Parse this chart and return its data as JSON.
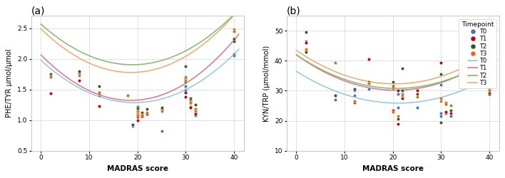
{
  "panel_a": {
    "title": "(a)",
    "ylabel": "PHE/TYR μmol/μmol",
    "xlabel": "MADRAS score",
    "xlim": [
      -2,
      42
    ],
    "ylim": [
      0.5,
      2.7
    ],
    "yticks": [
      0.5,
      1.0,
      1.5,
      2.0,
      2.5
    ],
    "xticks": [
      0,
      10,
      20,
      30,
      40
    ],
    "scatter": {
      "T0": {
        "color": "#4472C4",
        "points": [
          [
            2,
            1.7
          ],
          [
            2,
            1.73
          ],
          [
            8,
            1.79
          ],
          [
            8,
            1.76
          ],
          [
            12,
            1.44
          ],
          [
            12,
            1.42
          ],
          [
            12,
            1.4
          ],
          [
            19,
            0.9
          ],
          [
            19,
            0.92
          ],
          [
            20,
            1.22
          ],
          [
            20,
            1.21
          ],
          [
            20,
            1.14
          ],
          [
            20,
            1.12
          ],
          [
            20,
            1.1
          ],
          [
            21,
            1.11
          ],
          [
            21,
            1.1
          ],
          [
            22,
            1.1
          ],
          [
            25,
            0.82
          ],
          [
            30,
            1.55
          ],
          [
            30,
            1.5
          ],
          [
            30,
            1.48
          ],
          [
            31,
            1.3
          ],
          [
            31,
            1.27
          ],
          [
            32,
            1.1
          ],
          [
            32,
            1.08
          ],
          [
            40,
            2.08
          ],
          [
            40,
            2.05
          ]
        ]
      },
      "T1": {
        "color": "#C00000",
        "points": [
          [
            2,
            1.44
          ],
          [
            8,
            1.65
          ],
          [
            12,
            1.23
          ],
          [
            18,
            1.4
          ],
          [
            20,
            1.09
          ],
          [
            20,
            1.08
          ],
          [
            20,
            1.05
          ],
          [
            20,
            1.0
          ],
          [
            21,
            1.07
          ],
          [
            22,
            1.1
          ],
          [
            25,
            1.18
          ],
          [
            30,
            1.45
          ],
          [
            30,
            1.38
          ],
          [
            31,
            1.22
          ],
          [
            31,
            1.2
          ],
          [
            32,
            1.12
          ],
          [
            32,
            1.1
          ],
          [
            40,
            2.33
          ],
          [
            40,
            2.3
          ]
        ]
      },
      "T2": {
        "color": "#375623",
        "points": [
          [
            2,
            1.75
          ],
          [
            2,
            1.72
          ],
          [
            8,
            1.8
          ],
          [
            12,
            1.55
          ],
          [
            12,
            1.45
          ],
          [
            19,
            0.93
          ],
          [
            20,
            1.22
          ],
          [
            20,
            1.2
          ],
          [
            20,
            1.18
          ],
          [
            20,
            1.15
          ],
          [
            21,
            1.12
          ],
          [
            22,
            1.18
          ],
          [
            25,
            1.2
          ],
          [
            30,
            1.88
          ],
          [
            30,
            1.68
          ],
          [
            30,
            1.62
          ],
          [
            31,
            1.35
          ],
          [
            31,
            1.32
          ],
          [
            32,
            1.25
          ],
          [
            32,
            1.18
          ],
          [
            40,
            2.32
          ],
          [
            40,
            2.28
          ]
        ]
      },
      "T3": {
        "color": "#E36C09",
        "points": [
          [
            2,
            1.7
          ],
          [
            8,
            1.73
          ],
          [
            12,
            1.43
          ],
          [
            18,
            1.4
          ],
          [
            20,
            1.13
          ],
          [
            20,
            1.1
          ],
          [
            20,
            1.08
          ],
          [
            21,
            1.09
          ],
          [
            22,
            1.12
          ],
          [
            25,
            1.15
          ],
          [
            30,
            1.7
          ],
          [
            30,
            1.65
          ],
          [
            31,
            1.3
          ],
          [
            31,
            1.28
          ],
          [
            32,
            1.18
          ],
          [
            32,
            1.15
          ],
          [
            40,
            2.48
          ],
          [
            40,
            2.45
          ]
        ]
      }
    },
    "curves": {
      "T0": {
        "color": "#93c6e0",
        "a": 0.00185,
        "b": -0.0715,
        "c": 1.975
      },
      "T1": {
        "color": "#e07090",
        "a": 0.00215,
        "b": -0.08,
        "c": 2.065
      },
      "T2": {
        "color": "#80b870",
        "a": 0.00185,
        "b": -0.07,
        "c": 2.565
      },
      "T3": {
        "color": "#f0a868",
        "a": 0.00205,
        "b": -0.0765,
        "c": 2.49
      }
    }
  },
  "panel_b": {
    "title": "(b)",
    "ylabel": "KYN/TRP (μmol/mmol)",
    "xlabel": "MADRAS score",
    "xlim": [
      -2,
      42
    ],
    "ylim": [
      10,
      55
    ],
    "yticks": [
      10,
      20,
      30,
      40,
      50
    ],
    "xticks": [
      0,
      10,
      20,
      30,
      40
    ],
    "scatter": {
      "T0": {
        "color": "#4472C4",
        "points": [
          [
            2,
            46.5
          ],
          [
            2,
            43.5
          ],
          [
            8,
            27.0
          ],
          [
            12,
            30.0
          ],
          [
            12,
            28.5
          ],
          [
            15,
            30.5
          ],
          [
            20,
            31.0
          ],
          [
            20,
            30.5
          ],
          [
            21,
            29.0
          ],
          [
            21,
            24.5
          ],
          [
            22,
            29.0
          ],
          [
            25,
            24.5
          ],
          [
            30,
            32.0
          ],
          [
            30,
            22.5
          ],
          [
            30,
            21.5
          ],
          [
            31,
            22.5
          ],
          [
            32,
            21.5
          ],
          [
            40,
            29.0
          ]
        ]
      },
      "T1": {
        "color": "#C00000",
        "points": [
          [
            2,
            46.0
          ],
          [
            8,
            28.5
          ],
          [
            12,
            30.5
          ],
          [
            15,
            40.5
          ],
          [
            20,
            31.5
          ],
          [
            20,
            23.5
          ],
          [
            21,
            30.0
          ],
          [
            21,
            19.0
          ],
          [
            22,
            27.5
          ],
          [
            25,
            30.0
          ],
          [
            30,
            39.5
          ],
          [
            30,
            27.5
          ],
          [
            31,
            23.0
          ],
          [
            32,
            22.5
          ],
          [
            40,
            29.0
          ]
        ]
      },
      "T2": {
        "color": "#375623",
        "points": [
          [
            2,
            49.5
          ],
          [
            2,
            43.0
          ],
          [
            8,
            28.5
          ],
          [
            12,
            30.5
          ],
          [
            12,
            26.0
          ],
          [
            15,
            33.0
          ],
          [
            15,
            32.5
          ],
          [
            20,
            31.5
          ],
          [
            20,
            33.0
          ],
          [
            21,
            20.5
          ],
          [
            22,
            30.0
          ],
          [
            22,
            37.5
          ],
          [
            25,
            29.0
          ],
          [
            30,
            35.5
          ],
          [
            30,
            19.5
          ],
          [
            31,
            25.5
          ],
          [
            32,
            23.5
          ],
          [
            40,
            29.5
          ],
          [
            40,
            30.5
          ]
        ]
      },
      "T3": {
        "color": "#E36C09",
        "points": [
          [
            2,
            44.0
          ],
          [
            8,
            39.5
          ],
          [
            12,
            26.5
          ],
          [
            15,
            32.5
          ],
          [
            20,
            31.0
          ],
          [
            20,
            23.0
          ],
          [
            21,
            21.5
          ],
          [
            22,
            28.5
          ],
          [
            25,
            28.0
          ],
          [
            30,
            27.5
          ],
          [
            30,
            26.5
          ],
          [
            31,
            26.0
          ],
          [
            32,
            25.0
          ],
          [
            40,
            33.0
          ],
          [
            40,
            30.0
          ]
        ]
      }
    },
    "curves": {
      "T0": {
        "color": "#93c6e0",
        "a": 0.024,
        "b": -1.01,
        "c": 36.5
      },
      "T1": {
        "color": "#e07090",
        "a": 0.028,
        "b": -1.15,
        "c": 42.0
      },
      "T2": {
        "color": "#80b870",
        "a": 0.026,
        "b": -1.08,
        "c": 42.0
      },
      "T3": {
        "color": "#f0a868",
        "a": 0.027,
        "b": -1.1,
        "c": 43.5
      }
    }
  },
  "legend": {
    "timepoints": [
      "T0",
      "T1",
      "T2",
      "T3"
    ],
    "scatter_colors": [
      "#4472C4",
      "#C00000",
      "#375623",
      "#E36C09"
    ],
    "line_colors": [
      "#93c6e0",
      "#e07090",
      "#80b870",
      "#f0a868"
    ],
    "label": "Timepoint"
  },
  "background_color": "#ffffff",
  "grid_color": "#dddddd"
}
